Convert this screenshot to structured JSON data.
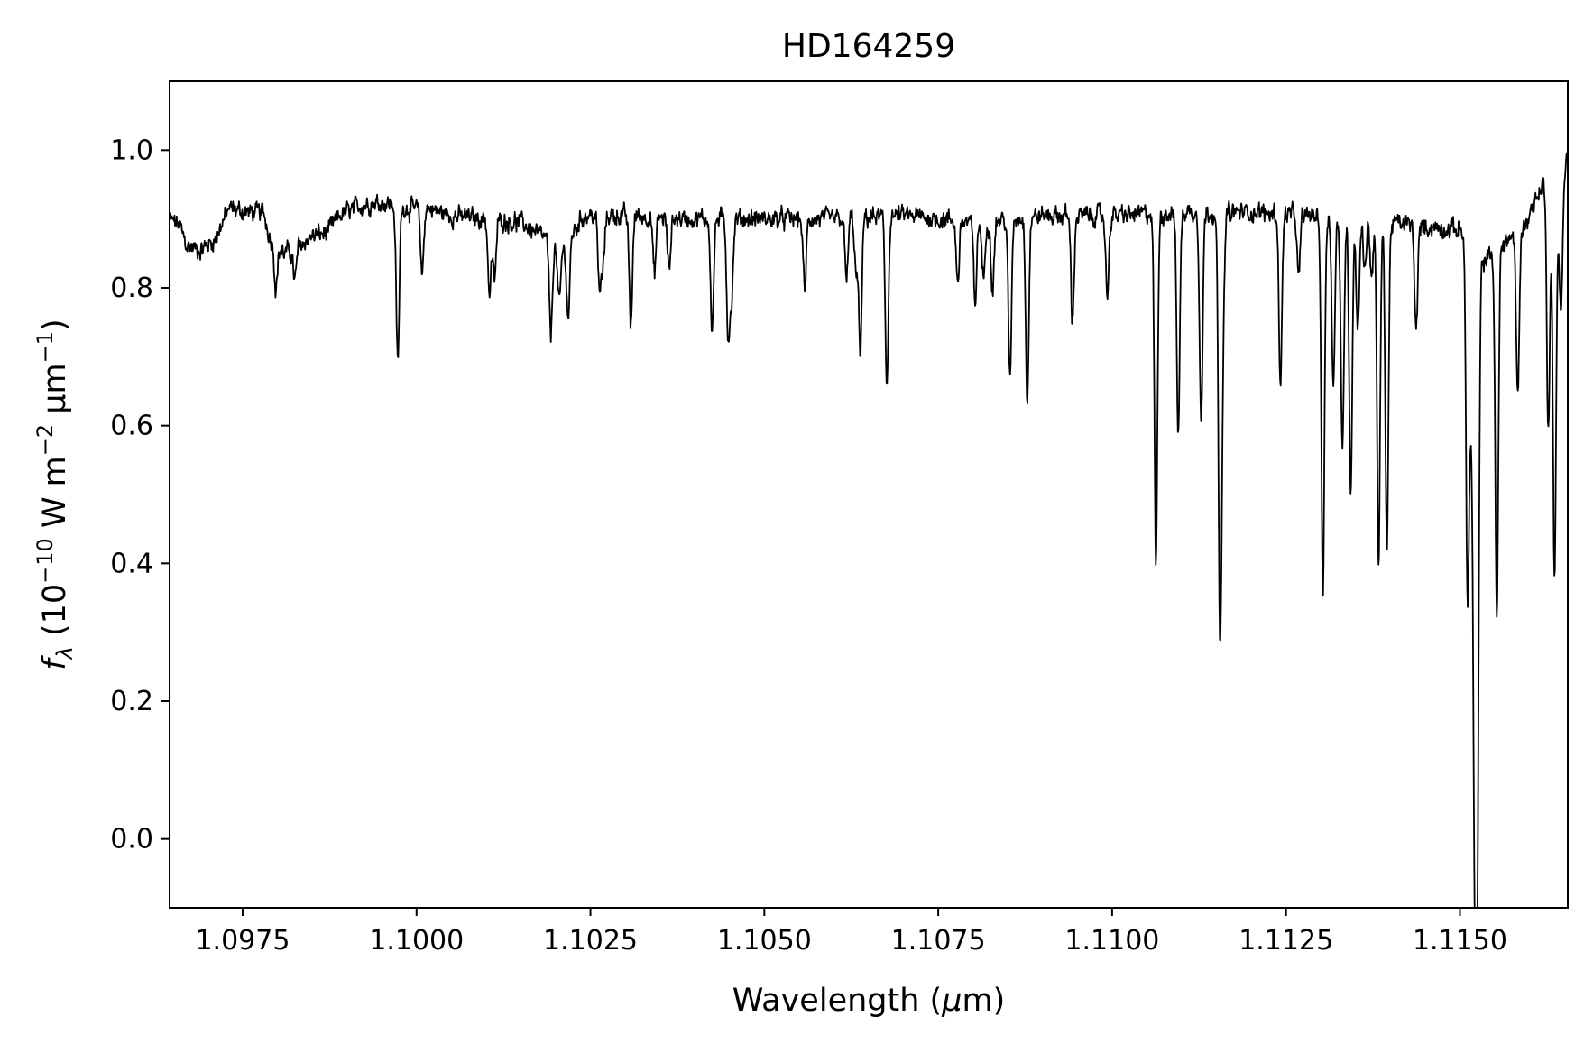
{
  "chart_data": {
    "type": "line",
    "title": "HD164259",
    "xlabel_parts": [
      "Wavelength (",
      "μ",
      "m)"
    ],
    "ylabel_parts": [
      "f",
      "λ",
      " (10",
      "−10",
      " W m",
      "−2",
      " μm",
      "−1",
      ")"
    ],
    "xlim": [
      1.09645,
      1.11655
    ],
    "ylim": [
      -0.1,
      1.1
    ],
    "x_ticks": [
      1.0975,
      1.1,
      1.1025,
      1.105,
      1.1075,
      1.11,
      1.1125,
      1.115
    ],
    "x_tick_labels": [
      "1.0975",
      "1.1000",
      "1.1025",
      "1.1050",
      "1.1075",
      "1.1100",
      "1.1125",
      "1.1150"
    ],
    "y_ticks": [
      0.0,
      0.2,
      0.4,
      0.6,
      0.8,
      1.0
    ],
    "y_tick_labels": [
      "0.0",
      "0.2",
      "0.4",
      "0.6",
      "0.8",
      "1.0"
    ],
    "grid": false,
    "line_color": "#000000",
    "series": [
      {
        "continuum": [
          [
            1.09645,
            0.9
          ],
          [
            1.0966,
            0.89
          ],
          [
            1.0967,
            0.86
          ],
          [
            1.0969,
            0.855
          ],
          [
            1.0971,
            0.87
          ],
          [
            1.0973,
            0.915
          ],
          [
            1.0976,
            0.91
          ],
          [
            1.0978,
            0.91
          ],
          [
            1.0979,
            0.87
          ],
          [
            1.0981,
            0.85
          ],
          [
            1.0983,
            0.86
          ],
          [
            1.0985,
            0.875
          ],
          [
            1.0987,
            0.88
          ],
          [
            1.0989,
            0.905
          ],
          [
            1.0992,
            0.92
          ],
          [
            1.0995,
            0.925
          ],
          [
            1.0999,
            0.915
          ],
          [
            1.1002,
            0.915
          ],
          [
            1.1005,
            0.905
          ],
          [
            1.101,
            0.9
          ],
          [
            1.1015,
            0.895
          ],
          [
            1.1018,
            0.875
          ],
          [
            1.1021,
            0.855
          ],
          [
            1.1024,
            0.905
          ],
          [
            1.103,
            0.905
          ],
          [
            1.104,
            0.9
          ],
          [
            1.105,
            0.9
          ],
          [
            1.106,
            0.9
          ],
          [
            1.107,
            0.905
          ],
          [
            1.108,
            0.895
          ],
          [
            1.109,
            0.905
          ],
          [
            1.11,
            0.905
          ],
          [
            1.111,
            0.91
          ],
          [
            1.112,
            0.91
          ],
          [
            1.113,
            0.905
          ],
          [
            1.114,
            0.895
          ],
          [
            1.1148,
            0.885
          ],
          [
            1.1151,
            0.885
          ],
          [
            1.1153,
            0.835
          ],
          [
            1.1156,
            0.865
          ],
          [
            1.1159,
            0.885
          ],
          [
            1.1161,
            0.93
          ],
          [
            1.1162,
            0.955
          ],
          [
            1.1163,
            0.93
          ],
          [
            1.11645,
            0.92
          ],
          [
            1.11655,
            1.0
          ]
        ],
        "absorption_lines": [
          [
            1.09798,
            0.8
          ],
          [
            1.09825,
            0.81
          ],
          [
            1.09973,
            0.69
          ],
          [
            1.10008,
            0.82
          ],
          [
            1.10105,
            0.79
          ],
          [
            1.10112,
            0.81
          ],
          [
            1.10193,
            0.73
          ],
          [
            1.10205,
            0.775
          ],
          [
            1.10218,
            0.755
          ],
          [
            1.10263,
            0.8
          ],
          [
            1.10268,
            0.83
          ],
          [
            1.10308,
            0.745
          ],
          [
            1.10342,
            0.82
          ],
          [
            1.10363,
            0.825
          ],
          [
            1.10425,
            0.74
          ],
          [
            1.10448,
            0.735
          ],
          [
            1.10453,
            0.79
          ],
          [
            1.10558,
            0.795
          ],
          [
            1.10618,
            0.81
          ],
          [
            1.10632,
            0.82
          ],
          [
            1.10638,
            0.705
          ],
          [
            1.10676,
            0.66
          ],
          [
            1.10778,
            0.81
          ],
          [
            1.10803,
            0.78
          ],
          [
            1.10815,
            0.81
          ],
          [
            1.10828,
            0.8
          ],
          [
            1.10853,
            0.665
          ],
          [
            1.10878,
            0.64
          ],
          [
            1.10943,
            0.75
          ],
          [
            1.10993,
            0.79
          ],
          [
            1.11063,
            0.395
          ],
          [
            1.11095,
            0.59
          ],
          [
            1.11128,
            0.61
          ],
          [
            1.11155,
            0.305
          ],
          [
            1.11159,
            0.74
          ],
          [
            1.11242,
            0.66
          ],
          [
            1.11268,
            0.815
          ],
          [
            1.11303,
            0.345
          ],
          [
            1.11318,
            0.66
          ],
          [
            1.11331,
            0.56
          ],
          [
            1.11343,
            0.505
          ],
          [
            1.11353,
            0.74
          ],
          [
            1.11363,
            0.83
          ],
          [
            1.11373,
            0.82
          ],
          [
            1.11383,
            0.39
          ],
          [
            1.11395,
            0.42
          ],
          [
            1.11437,
            0.74
          ],
          [
            1.11511,
            0.355
          ],
          [
            1.11516,
            0.665
          ],
          [
            1.11521,
            0.065
          ],
          [
            1.11525,
            0.0
          ],
          [
            1.11553,
            0.32
          ],
          [
            1.11583,
            0.64
          ],
          [
            1.11627,
            0.6
          ],
          [
            1.11636,
            0.37
          ],
          [
            1.11645,
            0.77
          ]
        ]
      }
    ]
  }
}
